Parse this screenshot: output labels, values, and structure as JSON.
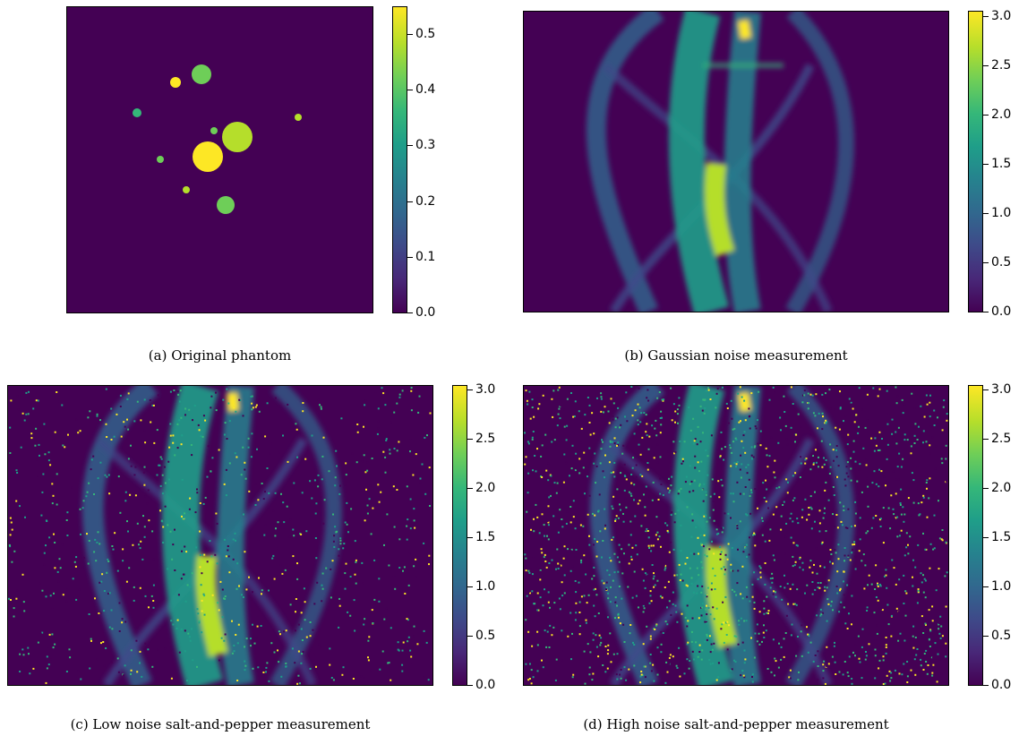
{
  "panels": [
    {
      "id": "a",
      "caption": "(a) Original phantom",
      "colorbar": {
        "min": 0.0,
        "max": 0.55,
        "ticks": [
          "0.0",
          "0.1",
          "0.2",
          "0.3",
          "0.4",
          "0.5"
        ],
        "tick_values": [
          0.0,
          0.1,
          0.2,
          0.3,
          0.4,
          0.5
        ]
      }
    },
    {
      "id": "b",
      "caption": "(b) Gaussian noise measurement",
      "colorbar": {
        "min": 0.0,
        "max": 3.05,
        "ticks": [
          "0.0",
          "0.5",
          "1.0",
          "1.5",
          "2.0",
          "2.5",
          "3.0"
        ],
        "tick_values": [
          0.0,
          0.5,
          1.0,
          1.5,
          2.0,
          2.5,
          3.0
        ]
      }
    },
    {
      "id": "c",
      "caption": "(c) Low noise salt-and-pepper measurement",
      "colorbar": {
        "min": 0.0,
        "max": 3.05,
        "ticks": [
          "0.0",
          "0.5",
          "1.0",
          "1.5",
          "2.0",
          "2.5",
          "3.0"
        ],
        "tick_values": [
          0.0,
          0.5,
          1.0,
          1.5,
          2.0,
          2.5,
          3.0
        ]
      }
    },
    {
      "id": "d",
      "caption": "(d) High noise salt-and-pepper measurement",
      "colorbar": {
        "min": 0.0,
        "max": 3.05,
        "ticks": [
          "0.0",
          "0.5",
          "1.0",
          "1.5",
          "2.0",
          "2.5",
          "3.0"
        ],
        "tick_values": [
          0.0,
          0.5,
          1.0,
          1.5,
          2.0,
          2.5,
          3.0
        ]
      }
    }
  ],
  "colormap": [
    "#440154",
    "#482878",
    "#3e4a89",
    "#31688e",
    "#26828e",
    "#1f9e89",
    "#35b779",
    "#6ece58",
    "#b5de2b",
    "#fde725"
  ]
}
